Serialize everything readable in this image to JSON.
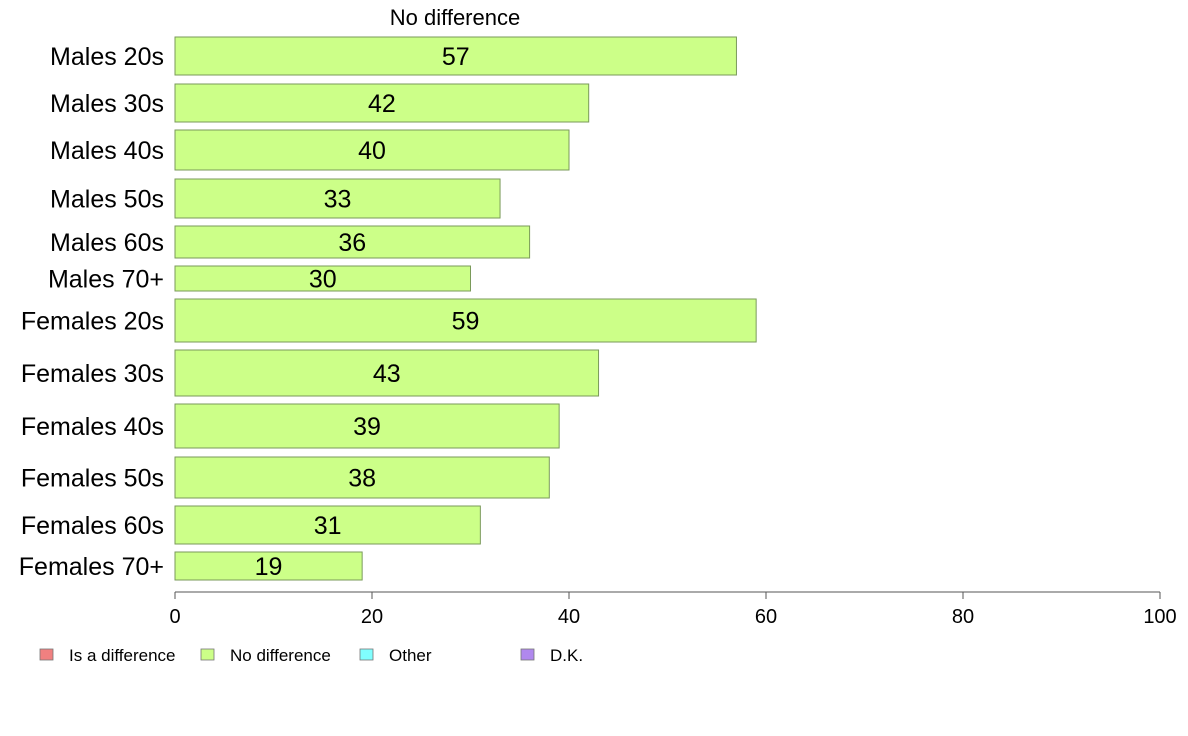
{
  "chart_data": {
    "type": "bar",
    "orientation": "horizontal",
    "title": "No difference",
    "categories": [
      "Males 20s",
      "Males 30s",
      "Males 40s",
      "Males 50s",
      "Males 60s",
      "Males 70+",
      "Females 20s",
      "Females 30s",
      "Females 40s",
      "Females 50s",
      "Females 60s",
      "Females 70+"
    ],
    "series": [
      {
        "name": "No difference",
        "values": [
          57,
          42,
          40,
          33,
          36,
          30,
          59,
          43,
          39,
          38,
          31,
          19
        ],
        "color": "#ccff88"
      }
    ],
    "xlim": [
      0,
      100
    ],
    "xticks": [
      "0",
      "20",
      "40",
      "60",
      "80",
      "100"
    ],
    "grid": false,
    "legend_position": "bottom-left",
    "legend": [
      {
        "name": "Is a difference",
        "color": "#f08080"
      },
      {
        "name": "No difference",
        "color": "#ccff88"
      },
      {
        "name": "Other",
        "color": "#80ffff"
      },
      {
        "name": "D.K.",
        "color": "#b088ee"
      }
    ]
  }
}
